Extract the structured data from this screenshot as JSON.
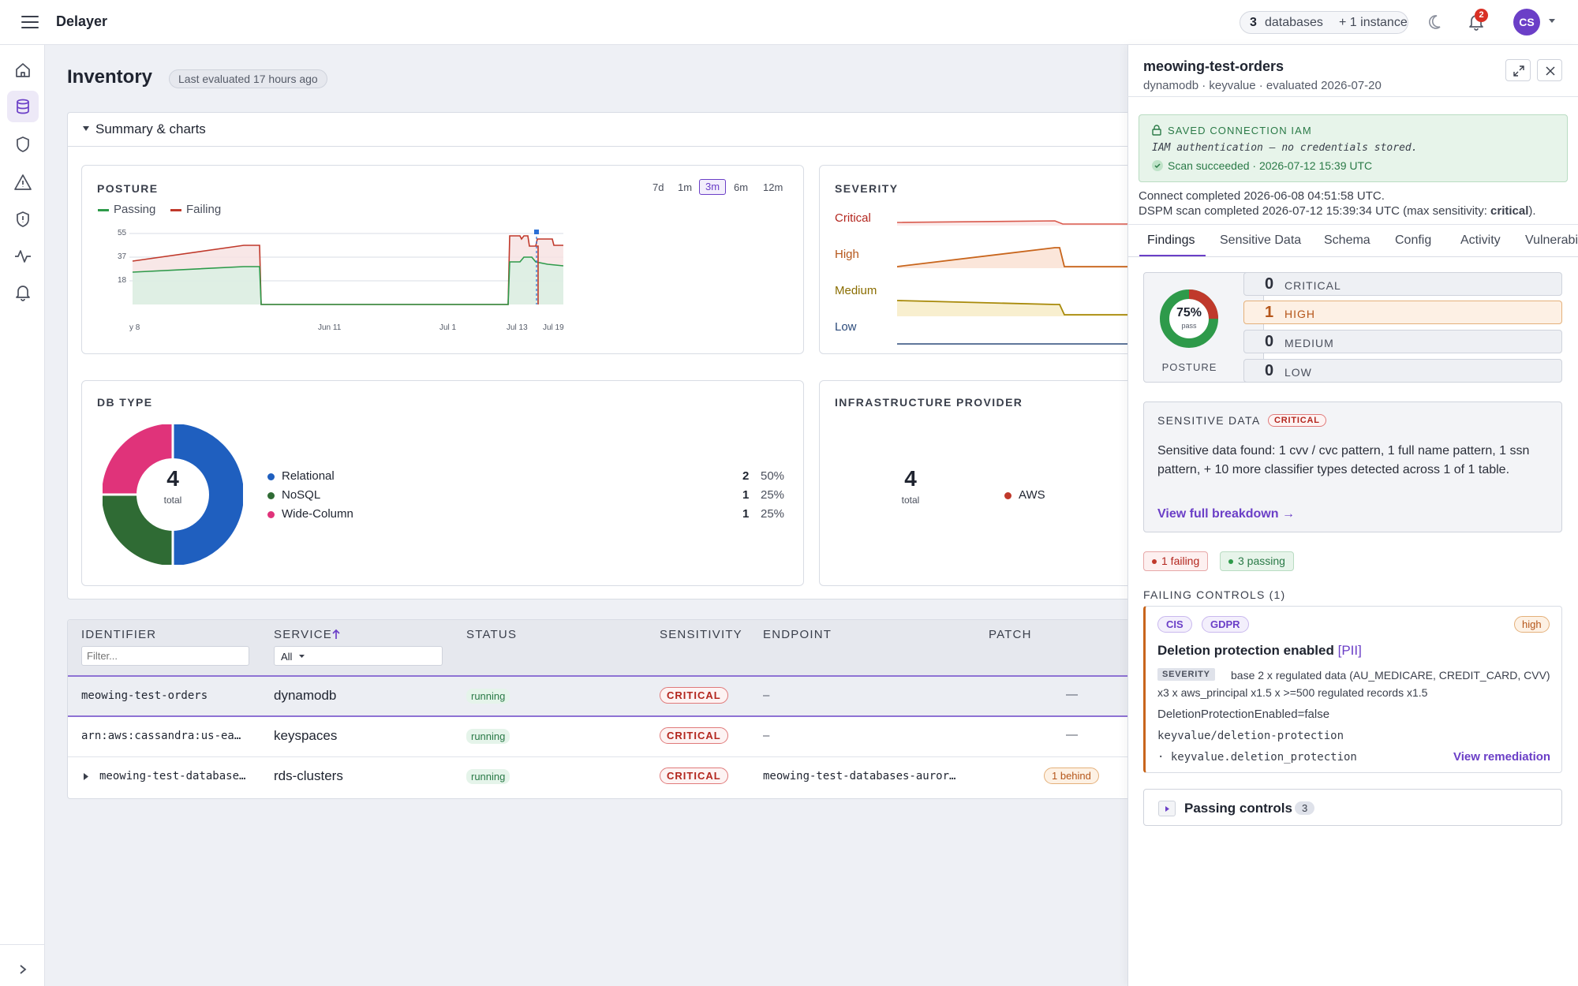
{
  "app": {
    "title": "Delayer",
    "accent": "#6b3fc7"
  },
  "header": {
    "db_count": "3",
    "db_label": "databases",
    "instance_label": "+ 1 instance",
    "notification_count": "2",
    "avatar_initials": "CS"
  },
  "page": {
    "title": "Inventory",
    "evaluated": "Last evaluated 17 hours ago"
  },
  "summary": {
    "toggle_label": "Summary & charts"
  },
  "posture": {
    "title": "POSTURE",
    "legend_passing": "Passing",
    "legend_failing": "Failing",
    "ranges": [
      "7d",
      "1m",
      "3m",
      "6m",
      "12m"
    ],
    "active_range": "3m",
    "y_ticks": [
      "55",
      "37",
      "18"
    ],
    "x_ticks": [
      "y 8",
      "Jun 11",
      "Jul 1",
      "Jul 13",
      "Jul 19"
    ]
  },
  "severity_chart": {
    "title": "SEVERITY",
    "labels": [
      "Critical",
      "High",
      "Medium",
      "Low"
    ]
  },
  "db_type": {
    "title": "DB TYPE",
    "total": "4",
    "total_label": "total",
    "items": [
      {
        "label": "Relational",
        "count": "2",
        "pct": "50%",
        "color": "#1f5fbf"
      },
      {
        "label": "NoSQL",
        "count": "1",
        "pct": "25%",
        "color": "#2f6b34"
      },
      {
        "label": "Wide-Column",
        "count": "1",
        "pct": "25%",
        "color": "#e0337a"
      }
    ]
  },
  "infra": {
    "title": "INFRASTRUCTURE PROVIDER",
    "total": "4",
    "total_label": "total",
    "provider": "AWS"
  },
  "table": {
    "headers": {
      "identifier": "IDENTIFIER",
      "service": "SERVICE",
      "status": "STATUS",
      "sensitivity": "SENSITIVITY",
      "endpoint": "ENDPOINT",
      "patch": "PATCH"
    },
    "filter_placeholder": "Filter...",
    "service_filter": "All",
    "rows": [
      {
        "identifier": "meowing-test-orders",
        "service": "dynamodb",
        "status": "running",
        "sensitivity": "CRITICAL",
        "endpoint": "–",
        "patch": "—"
      },
      {
        "identifier": "arn:aws:cassandra:us-ea…",
        "service": "keyspaces",
        "status": "running",
        "sensitivity": "CRITICAL",
        "endpoint": "–",
        "patch": "—"
      },
      {
        "identifier": "meowing-test-database…",
        "service": "rds-clusters",
        "status": "running",
        "sensitivity": "CRITICAL",
        "endpoint": "meowing-test-databases-auror…",
        "patch": "1 behind"
      }
    ]
  },
  "panel": {
    "title": "meowing-test-orders",
    "subtitle": "dynamodb · keyvalue · evaluated 2026-07-20",
    "conn_title": "SAVED CONNECTION IAM",
    "conn_desc": "IAM authentication — no credentials stored.",
    "conn_scan": "Scan succeeded · 2026-07-12 15:39 UTC",
    "connect_line": "Connect completed 2026-06-08 04:51:58 UTC.",
    "dspm_line": "DSPM scan completed 2026-07-12 15:39:34 UTC (max sensitivity: ",
    "dspm_max": "critical",
    "dspm_end": ").",
    "tabs": [
      "Findings",
      "Sensitive Data",
      "Schema",
      "Config",
      "Activity",
      "Vulnerabi"
    ],
    "active_tab": "Findings",
    "posture_pct": "75%",
    "posture_pass": "pass",
    "posture_label": "POSTURE",
    "severity": [
      {
        "count": "0",
        "label": "CRITICAL"
      },
      {
        "count": "1",
        "label": "HIGH"
      },
      {
        "count": "0",
        "label": "MEDIUM"
      },
      {
        "count": "0",
        "label": "LOW"
      }
    ],
    "sensitive": {
      "title": "SENSITIVE DATA",
      "badge": "CRITICAL",
      "text": "Sensitive data found: 1 cvv / cvc pattern, 1 full name pattern, 1 ssn pattern, + 10 more classifier types detected across 1 of 1 table.",
      "link": "View full breakdown →"
    },
    "failing_chip": "1 failing",
    "passing_chip": "3 passing",
    "failing_title": "FAILING CONTROLS (1)",
    "control": {
      "tags": [
        "CIS",
        "GDPR"
      ],
      "level": "high",
      "title": "Deletion protection enabled",
      "title_tag": "[PII]",
      "sev_label": "SEVERITY",
      "sev_text": "base 2 x regulated data (AU_MEDICARE, CREDIT_CARD, CVV) x3 x aws_principal x1.5 x >=500 regulated records x1.5",
      "check": "DeletionProtectionEnabled=false",
      "path": "keyvalue/deletion-protection",
      "field": "· keyvalue.deletion_protection",
      "remediation": "View remediation"
    },
    "passing_title": "Passing controls",
    "passing_count": "3"
  }
}
